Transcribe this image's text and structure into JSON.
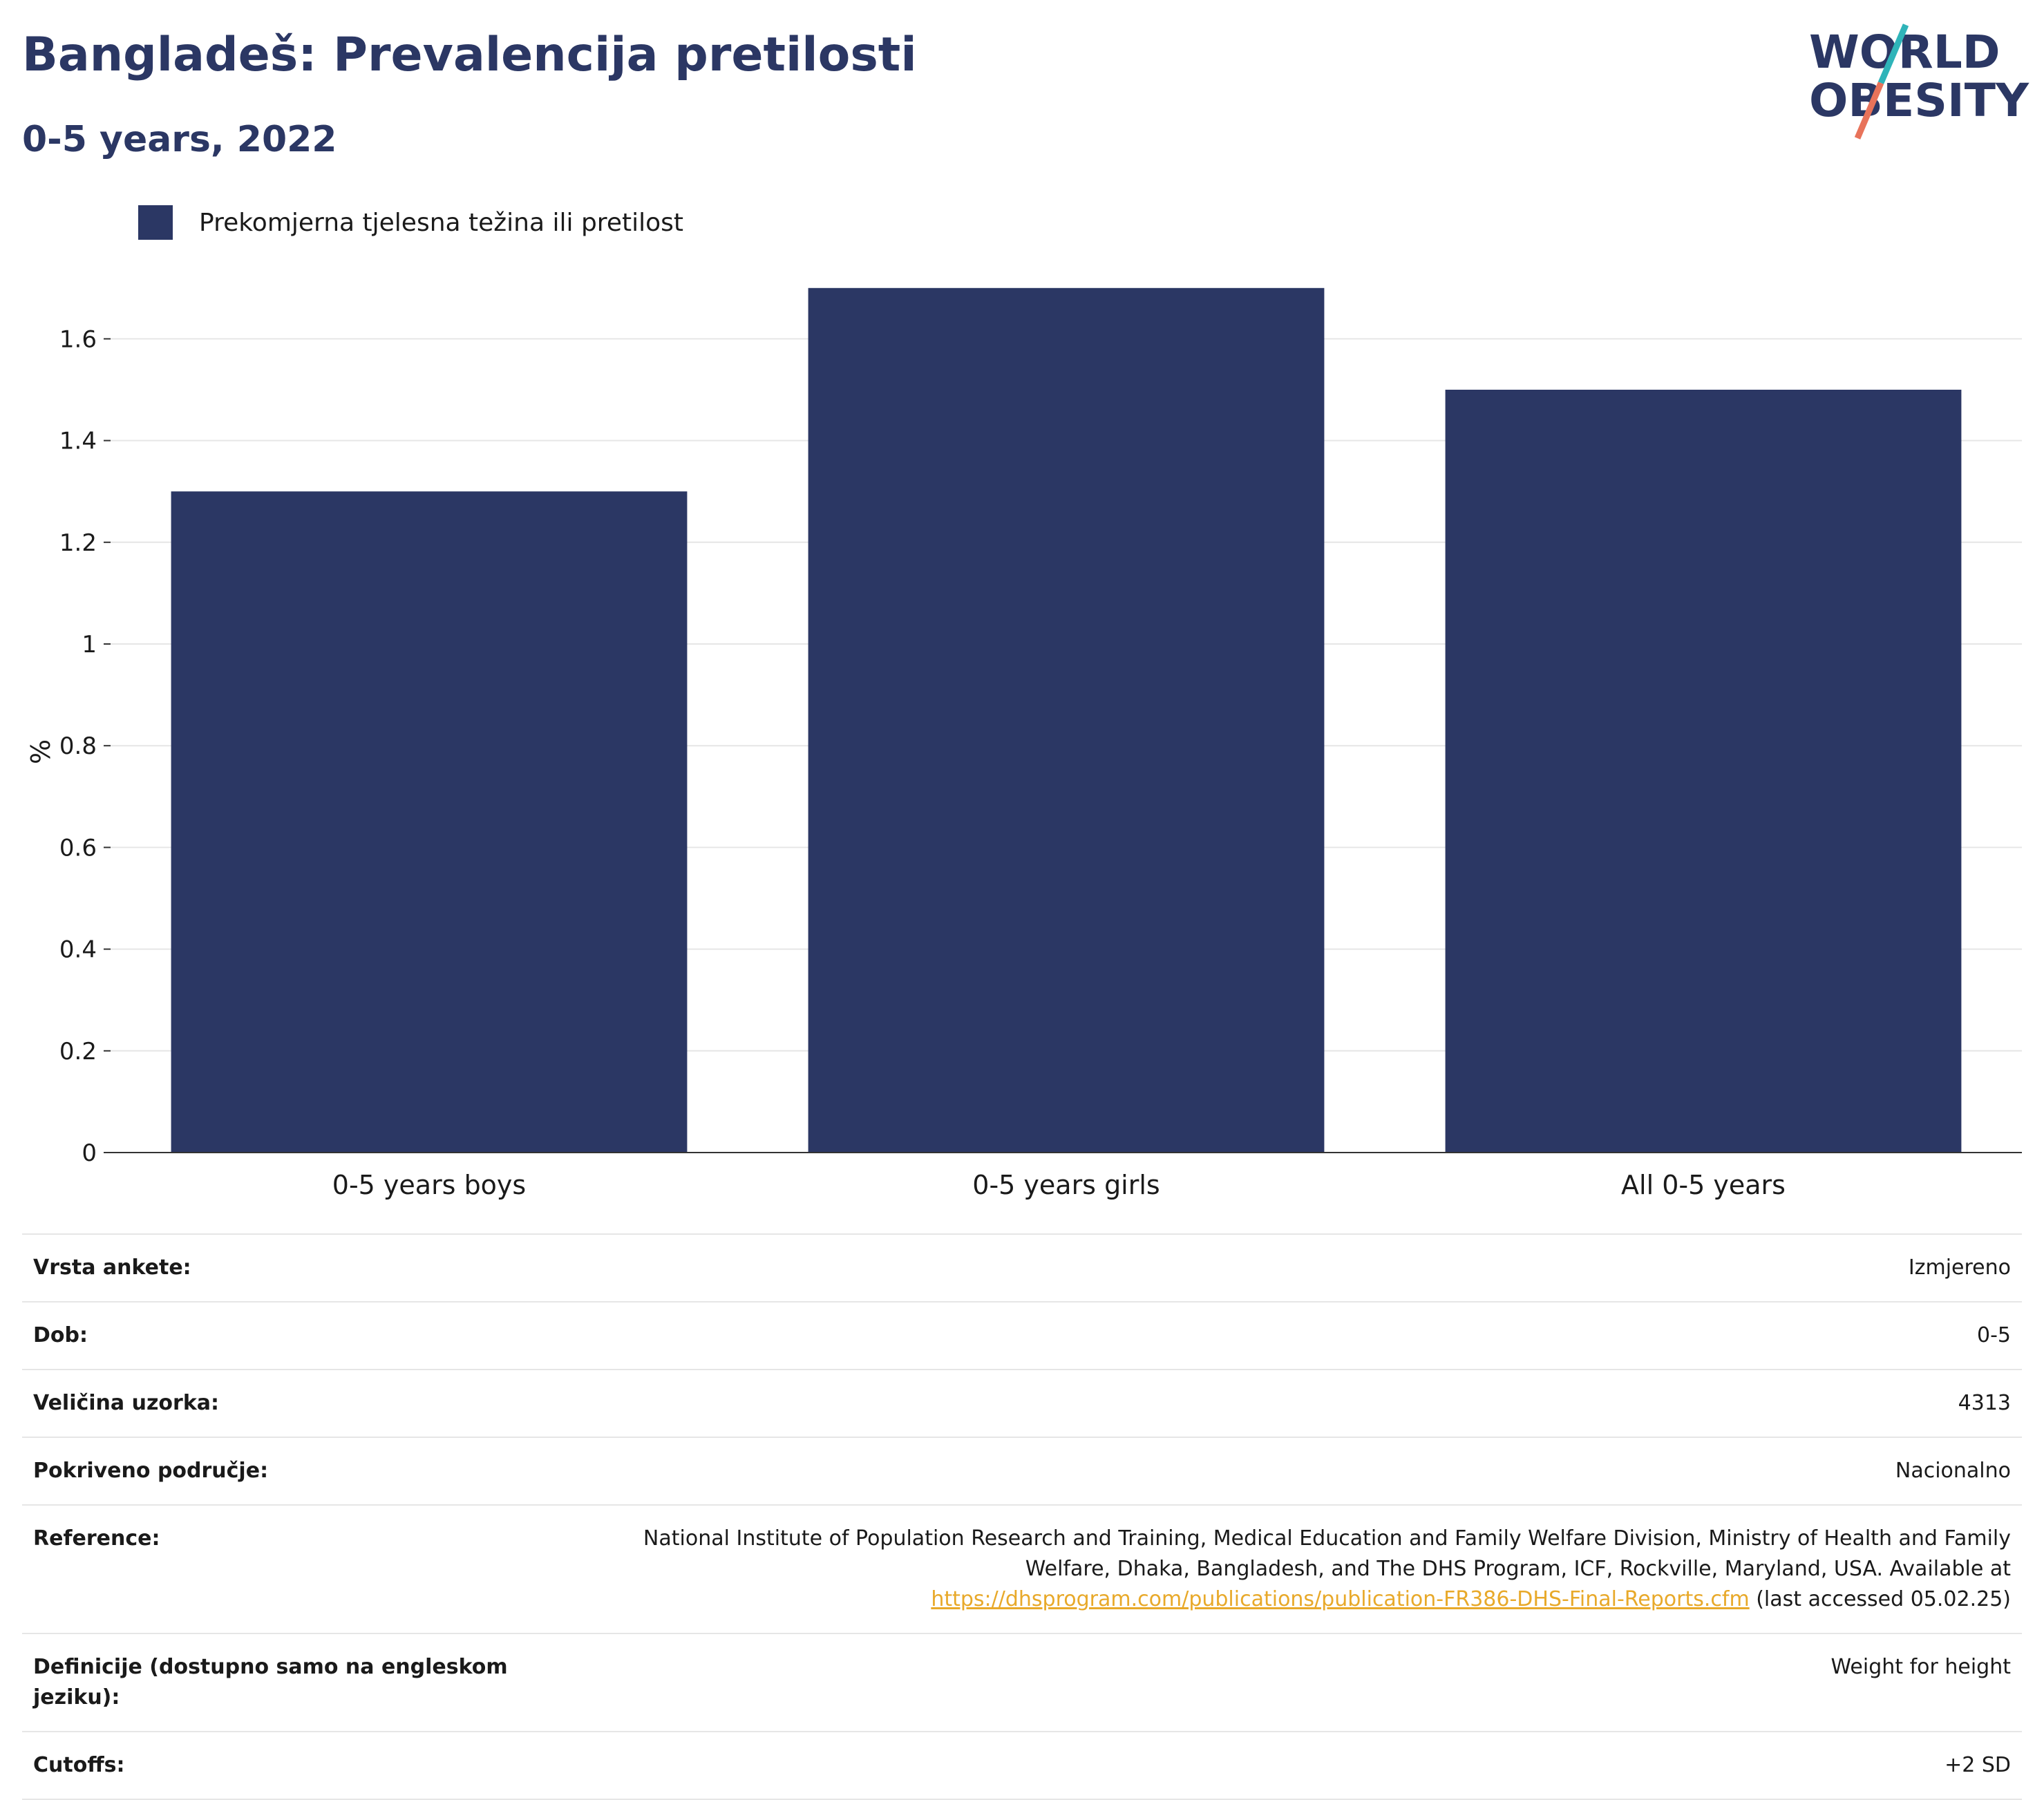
{
  "header": {
    "title": "Bangladeš: Prevalencija pretilosti",
    "subtitle": "0-5 years, 2022"
  },
  "logo": {
    "line1": "WORLD",
    "line2": "OBESITY",
    "text_color": "#2b3764",
    "accent_teal": "#2fb4b9",
    "accent_coral": "#e8735a"
  },
  "colors": {
    "bar": "#2b3764",
    "grid": "#e6e6e6",
    "axis": "#333333",
    "link": "#e8a92a"
  },
  "chart_data": {
    "type": "bar",
    "title": "",
    "ylabel": "%",
    "xlabel": "",
    "categories": [
      "0-5 years boys",
      "0-5 years girls",
      "All 0-5 years"
    ],
    "series": [
      {
        "name": "Prekomjerna tjelesna težina ili pretilost",
        "values": [
          1.3,
          1.7,
          1.5
        ]
      }
    ],
    "ylim": [
      0,
      1.75
    ],
    "yticks": [
      0,
      0.2,
      0.4,
      0.6,
      0.8,
      1,
      1.2,
      1.4,
      1.6
    ],
    "ytick_labels": [
      "0",
      "0.2",
      "0.4",
      "0.6",
      "0.8",
      "1",
      "1.2",
      "1.4",
      "1.6"
    ],
    "grid": true,
    "legend_position": "top-left"
  },
  "meta": {
    "rows": [
      {
        "label": "Vrsta ankete:",
        "value": "Izmjereno"
      },
      {
        "label": "Dob:",
        "value": "0-5"
      },
      {
        "label": "Veličina uzorka:",
        "value": "4313"
      },
      {
        "label": "Pokriveno područje:",
        "value": "Nacionalno"
      }
    ],
    "reference": {
      "label": "Reference:",
      "line1": "National Institute of Population Research and Training, Medical Education and Family Welfare Division, Ministry of Health and Family",
      "line2": "Welfare, Dhaka, Bangladesh, and The DHS Program, ICF, Rockville, Maryland, USA. Available at",
      "link": "https://dhsprogram.com/publications/publication-FR386-DHS-Final-Reports.cfm",
      "suffix": " (last accessed 05.02.25)"
    },
    "definitions": {
      "label": "Definicije (dostupno samo na engleskom jeziku):",
      "value": "Weight for height"
    },
    "cutoffs": {
      "label": "Cutoffs:",
      "value": "+2 SD"
    }
  }
}
